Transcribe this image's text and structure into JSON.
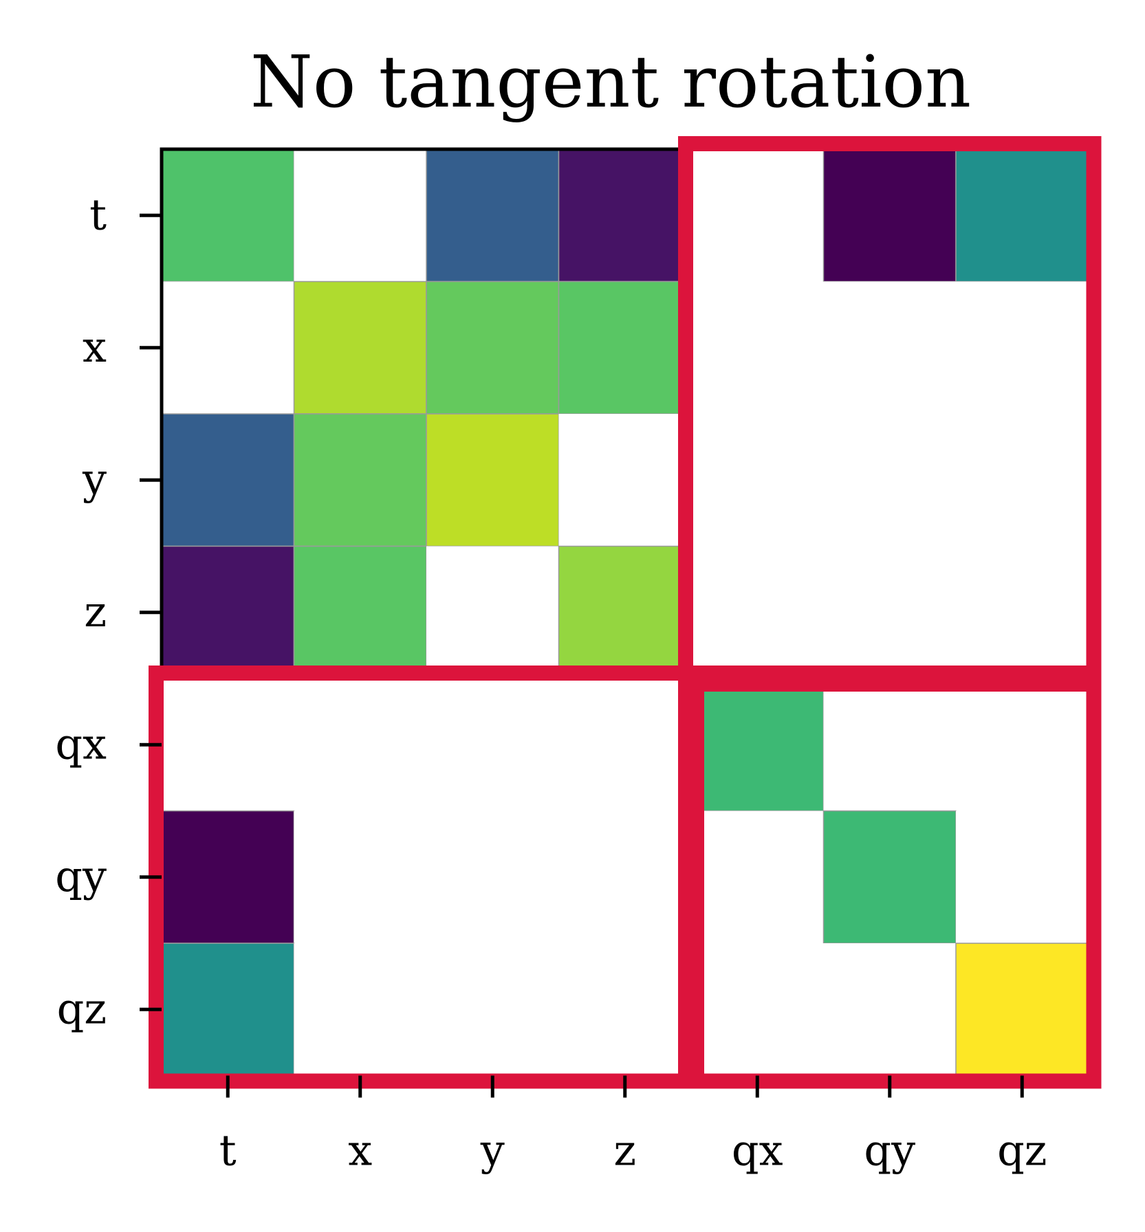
{
  "chart_data": {
    "type": "heatmap",
    "title": "No tangent rotation",
    "row_labels": [
      "t",
      "x",
      "y",
      "z",
      "qx",
      "qy",
      "qz"
    ],
    "col_labels": [
      "t",
      "x",
      "y",
      "z",
      "qx",
      "qy",
      "qz"
    ],
    "colormap": "viridis",
    "value_range": [
      0,
      1
    ],
    "values": [
      [
        0.72,
        null,
        0.3,
        0.05,
        null,
        0.0,
        0.5
      ],
      [
        null,
        0.88,
        0.76,
        0.74,
        null,
        null,
        null
      ],
      [
        0.3,
        0.76,
        0.9,
        null,
        null,
        null,
        null
      ],
      [
        0.05,
        0.74,
        null,
        0.84,
        null,
        null,
        null
      ],
      [
        null,
        null,
        null,
        null,
        0.68,
        null,
        null
      ],
      [
        0.0,
        null,
        null,
        null,
        null,
        0.68,
        null
      ],
      [
        0.5,
        null,
        null,
        null,
        null,
        null,
        1.0
      ]
    ],
    "blank_color": "#ffffff",
    "highlight_color": "#dc143c",
    "highlight_blocks": [
      {
        "rows": [
          "t",
          "z"
        ],
        "cols": [
          "qx",
          "qz"
        ]
      },
      {
        "rows": [
          "qx",
          "qz"
        ],
        "cols": [
          "t",
          "z"
        ]
      },
      {
        "rows": [
          "qx",
          "qz"
        ],
        "cols": [
          "qx",
          "qz"
        ]
      }
    ]
  }
}
